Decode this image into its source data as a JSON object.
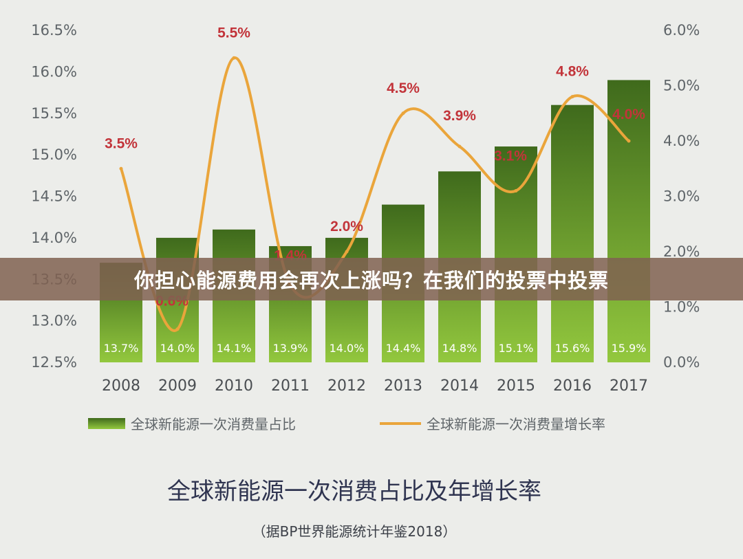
{
  "chart_data": {
    "type": "bar",
    "title": "全球新能源一次消费占比及年增长率",
    "subtitle": "（据BP世界能源统计年鉴2018）",
    "categories": [
      "2008",
      "2009",
      "2010",
      "2011",
      "2012",
      "2013",
      "2014",
      "2015",
      "2016",
      "2017"
    ],
    "series": [
      {
        "name": "全球新能源一次消费量占比",
        "kind": "bar",
        "axis": "left",
        "values": [
          13.7,
          14.0,
          14.1,
          13.9,
          14.0,
          14.4,
          14.8,
          15.1,
          15.6,
          15.9
        ],
        "labels": [
          "13.7%",
          "14.0%",
          "14.1%",
          "13.9%",
          "14.0%",
          "14.4%",
          "14.8%",
          "15.1%",
          "15.6%",
          "15.9%"
        ]
      },
      {
        "name": "全球新能源一次消费量增长率",
        "kind": "line",
        "axis": "right",
        "values": [
          3.5,
          0.6,
          5.5,
          1.4,
          2.0,
          4.5,
          3.9,
          3.1,
          4.8,
          4.0
        ],
        "labels": [
          "3.5%",
          "0.6%",
          "5.5%",
          "1.4%",
          "2.0%",
          "4.5%",
          "3.9%",
          "3.1%",
          "4.8%",
          "4.0%"
        ]
      }
    ],
    "y_left": {
      "ylim": [
        12.5,
        16.5
      ],
      "ticks": [
        "12.5%",
        "13.0%",
        "13.5%",
        "14.0%",
        "14.5%",
        "15.0%",
        "15.5%",
        "16.0%",
        "16.5%"
      ]
    },
    "y_right": {
      "ylim": [
        0.0,
        6.0
      ],
      "ticks": [
        "0.0%",
        "1.0%",
        "2.0%",
        "3.0%",
        "4.0%",
        "5.0%",
        "6.0%"
      ]
    },
    "legend_position": "bottom",
    "grid": false
  },
  "overlay": {
    "banner_text": "你担心能源费用会再次上涨吗？在我们的投票中投票"
  },
  "colors": {
    "bar_top": "#3f6a1c",
    "bar_bottom": "#93c83e",
    "line": "#eaa53b",
    "point_label": "#c2343a",
    "banner_bg": "#806252"
  }
}
